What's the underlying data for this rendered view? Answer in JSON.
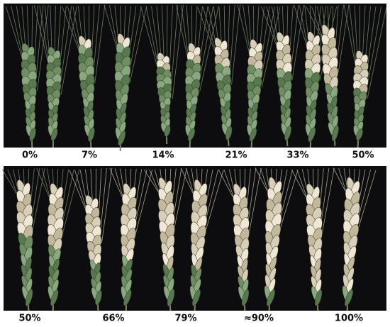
{
  "panels": [
    {
      "labels": [
        "0%",
        "7%",
        "14%",
        "21%",
        "33%",
        "50%"
      ]
    },
    {
      "labels": [
        "50%",
        "66%",
        "79%",
        "≈90%",
        "100%"
      ]
    }
  ]
}
